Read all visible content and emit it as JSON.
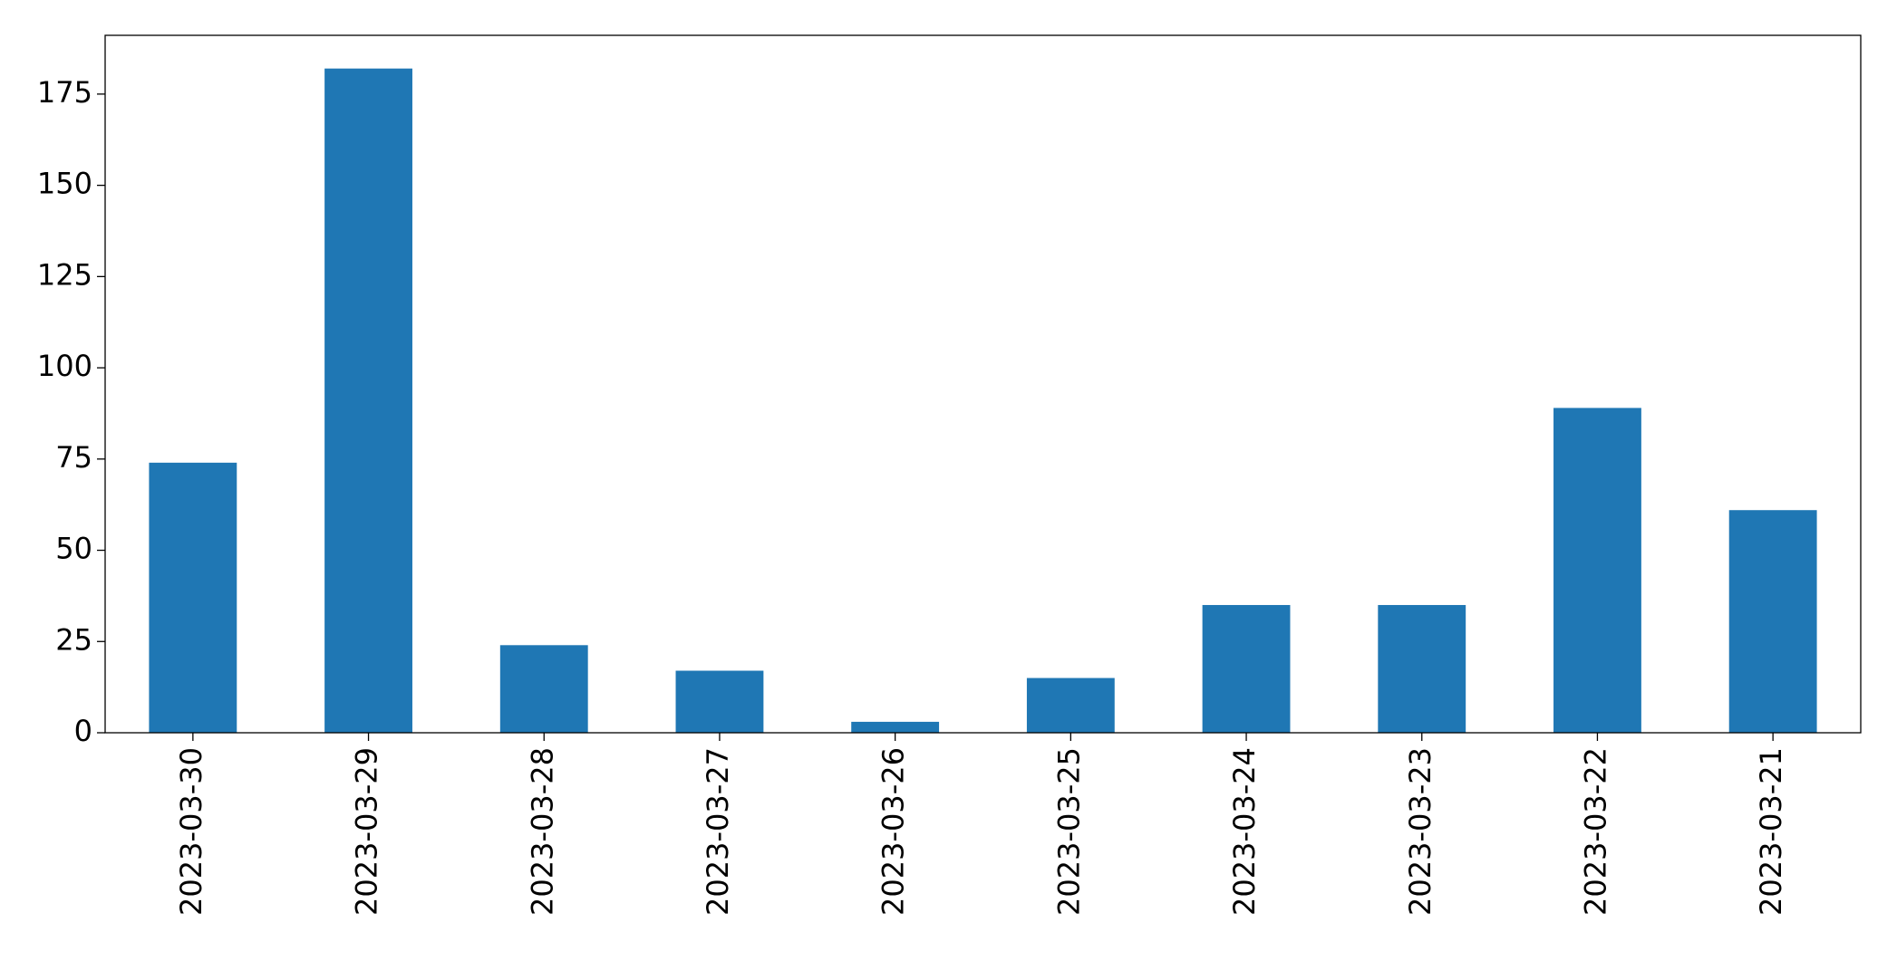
{
  "chart_data": {
    "type": "bar",
    "categories": [
      "2023-03-30",
      "2023-03-29",
      "2023-03-28",
      "2023-03-27",
      "2023-03-26",
      "2023-03-25",
      "2023-03-24",
      "2023-03-23",
      "2023-03-22",
      "2023-03-21"
    ],
    "values": [
      74,
      182,
      24,
      17,
      3,
      15,
      35,
      35,
      89,
      61
    ],
    "color": "#1f77b4",
    "ylim": [
      0,
      191.1
    ],
    "yticks": [
      0,
      25,
      50,
      75,
      100,
      125,
      150,
      175
    ],
    "grid": false
  }
}
